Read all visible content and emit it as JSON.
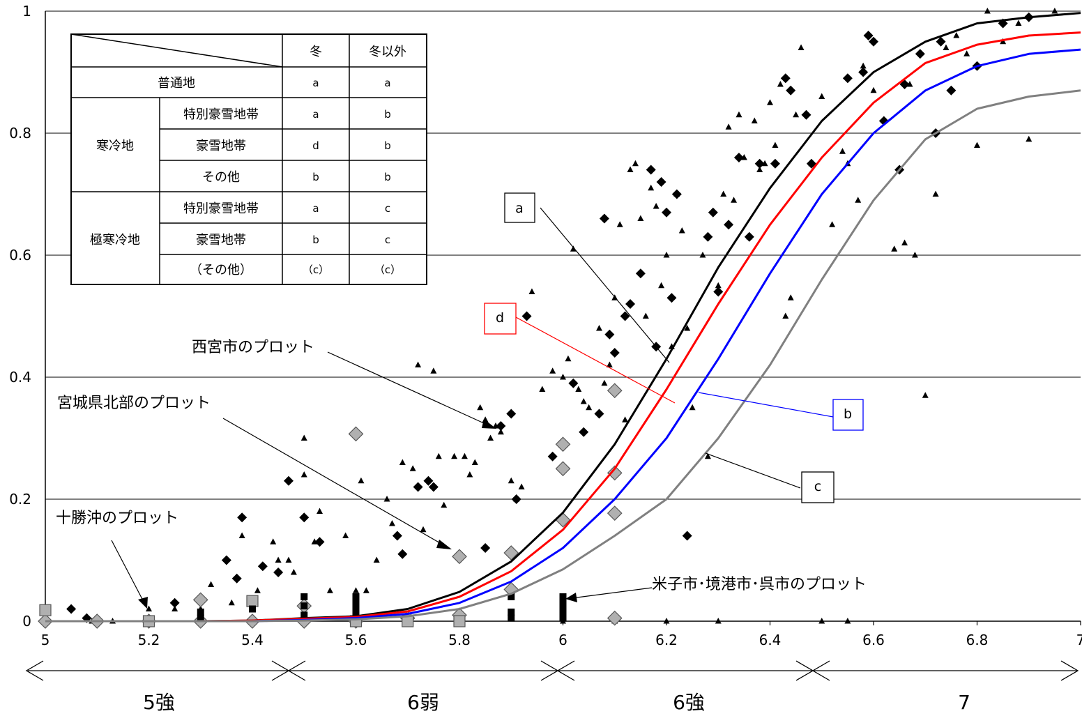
{
  "chart_data": {
    "type": "scatter",
    "title": "",
    "xlabel": "",
    "ylabel": "",
    "xlim": [
      5,
      7
    ],
    "ylim": [
      0,
      1
    ],
    "xticks": [
      5,
      5.2,
      5.4,
      5.6,
      5.8,
      6,
      6.2,
      6.4,
      6.6,
      6.8,
      7
    ],
    "xtick_labels": [
      "5",
      "5.2",
      "5.4",
      "5.6",
      "5.8",
      "6",
      "6.2",
      "6.4",
      "6.6",
      "6.8",
      "7"
    ],
    "yticks": [
      0,
      0.2,
      0.4,
      0.6,
      0.8,
      1
    ],
    "ytick_labels": [
      "0",
      "0.2",
      "0.4",
      "0.6",
      "0.8",
      "1"
    ],
    "grid": "horizontal",
    "curves": [
      {
        "label": "a",
        "color": "#000000",
        "x": [
          5,
          5.1,
          5.2,
          5.3,
          5.4,
          5.5,
          5.6,
          5.7,
          5.8,
          5.9,
          6,
          6.1,
          6.2,
          6.3,
          6.4,
          6.5,
          6.6,
          6.7,
          6.8,
          6.9,
          7
        ],
        "y": [
          0,
          0,
          0,
          0,
          0.001,
          0.005,
          0.008,
          0.02,
          0.048,
          0.098,
          0.178,
          0.29,
          0.43,
          0.58,
          0.71,
          0.82,
          0.9,
          0.95,
          0.98,
          0.99,
          0.997
        ]
      },
      {
        "label": "d",
        "color": "#ff0000",
        "x": [
          5,
          5.1,
          5.2,
          5.3,
          5.4,
          5.5,
          5.6,
          5.7,
          5.8,
          5.9,
          6,
          6.1,
          6.2,
          6.3,
          6.4,
          6.5,
          6.6,
          6.7,
          6.8,
          6.9,
          7
        ],
        "y": [
          0,
          0,
          0,
          0,
          0.001,
          0.004,
          0.007,
          0.016,
          0.04,
          0.082,
          0.15,
          0.25,
          0.38,
          0.52,
          0.65,
          0.76,
          0.85,
          0.915,
          0.945,
          0.96,
          0.965
        ]
      },
      {
        "label": "b",
        "color": "#0000ff",
        "x": [
          5,
          5.1,
          5.2,
          5.3,
          5.4,
          5.5,
          5.6,
          5.7,
          5.8,
          5.9,
          6,
          6.1,
          6.2,
          6.3,
          6.4,
          6.5,
          6.6,
          6.7,
          6.8,
          6.9,
          7
        ],
        "y": [
          0,
          0,
          0,
          0,
          0,
          0.002,
          0.005,
          0.012,
          0.03,
          0.065,
          0.12,
          0.2,
          0.3,
          0.43,
          0.57,
          0.7,
          0.8,
          0.87,
          0.91,
          0.93,
          0.937
        ]
      },
      {
        "label": "c",
        "color": "#808080",
        "x": [
          5,
          5.1,
          5.2,
          5.3,
          5.4,
          5.5,
          5.6,
          5.7,
          5.8,
          5.9,
          6,
          6.1,
          6.2,
          6.3,
          6.4,
          6.5,
          6.6,
          6.7,
          6.8,
          6.9,
          7
        ],
        "y": [
          0,
          0,
          0,
          0,
          0,
          0.001,
          0.003,
          0.008,
          0.02,
          0.045,
          0.085,
          0.14,
          0.2,
          0.3,
          0.42,
          0.56,
          0.69,
          0.79,
          0.84,
          0.86,
          0.87
        ]
      }
    ],
    "series": [
      {
        "marker": "triangle",
        "color": "#000000",
        "points": [
          [
            5.09,
            0
          ],
          [
            5.13,
            0
          ],
          [
            5.2,
            0.02
          ],
          [
            5.25,
            0.02
          ],
          [
            5.3,
            0.02
          ],
          [
            5.32,
            0.06
          ],
          [
            5.36,
            0.03
          ],
          [
            5.38,
            0.14
          ],
          [
            5.41,
            0.05
          ],
          [
            5.44,
            0.13
          ],
          [
            5.45,
            0.1
          ],
          [
            5.47,
            0.1
          ],
          [
            5.48,
            0.08
          ],
          [
            5.5,
            0.3
          ],
          [
            5.5,
            0.24
          ],
          [
            5.52,
            0.13
          ],
          [
            5.53,
            0.18
          ],
          [
            5.55,
            0.05
          ],
          [
            5.58,
            0.14
          ],
          [
            5.6,
            0.05
          ],
          [
            5.61,
            0.23
          ],
          [
            5.62,
            0.05
          ],
          [
            5.64,
            0.1
          ],
          [
            5.66,
            0.2
          ],
          [
            5.67,
            0.16
          ],
          [
            5.69,
            0.26
          ],
          [
            5.71,
            0.25
          ],
          [
            5.72,
            0.42
          ],
          [
            5.73,
            0.15
          ],
          [
            5.75,
            0.41
          ],
          [
            5.76,
            0.27
          ],
          [
            5.77,
            0.19
          ],
          [
            5.79,
            0.27
          ],
          [
            5.81,
            0.27
          ],
          [
            5.82,
            0.24
          ],
          [
            5.83,
            0.26
          ],
          [
            5.84,
            0.35
          ],
          [
            5.85,
            0.33
          ],
          [
            5.86,
            0.3
          ],
          [
            5.87,
            0.32
          ],
          [
            5.88,
            0.31
          ],
          [
            5.9,
            0.23
          ],
          [
            5.91,
            0.2
          ],
          [
            5.92,
            0.22
          ],
          [
            5.94,
            0.54
          ],
          [
            5.96,
            0.38
          ],
          [
            5.98,
            0.41
          ],
          [
            6.0,
            0.4
          ],
          [
            6.01,
            0.43
          ],
          [
            6.02,
            0.61
          ],
          [
            6.03,
            0.38
          ],
          [
            6.04,
            0.36
          ],
          [
            6.05,
            0.35
          ],
          [
            6.07,
            0.48
          ],
          [
            6.08,
            0.39
          ],
          [
            6.09,
            0.42
          ],
          [
            6.1,
            0.53
          ],
          [
            6.11,
            0.65
          ],
          [
            6.12,
            0.33
          ],
          [
            6.13,
            0.74
          ],
          [
            6.14,
            0.75
          ],
          [
            6.15,
            0.66
          ],
          [
            6.16,
            0.5
          ],
          [
            6.17,
            0.71
          ],
          [
            6.18,
            0.68
          ],
          [
            6.19,
            0.55
          ],
          [
            6.2,
            0.6
          ],
          [
            6.21,
            0.45
          ],
          [
            6.22,
            0.7
          ],
          [
            6.23,
            0.64
          ],
          [
            6.24,
            0.48
          ],
          [
            6.25,
            0.35
          ],
          [
            6.27,
            0.6
          ],
          [
            6.28,
            0.27
          ],
          [
            6.3,
            0.55
          ],
          [
            6.31,
            0.7
          ],
          [
            6.32,
            0.81
          ],
          [
            6.33,
            0.69
          ],
          [
            6.34,
            0.83
          ],
          [
            6.35,
            0.76
          ],
          [
            6.36,
            0.63
          ],
          [
            6.37,
            0.82
          ],
          [
            6.38,
            0.74
          ],
          [
            6.39,
            0.75
          ],
          [
            6.4,
            0.85
          ],
          [
            6.41,
            0.78
          ],
          [
            6.42,
            0.88
          ],
          [
            6.43,
            0.5
          ],
          [
            6.44,
            0.53
          ],
          [
            6.45,
            0.83
          ],
          [
            6.46,
            0.94
          ],
          [
            6.48,
            0.75
          ],
          [
            6.5,
            0.86
          ],
          [
            6.52,
            0.65
          ],
          [
            6.54,
            0.77
          ],
          [
            6.55,
            0.75
          ],
          [
            6.57,
            0.69
          ],
          [
            6.58,
            0.91
          ],
          [
            6.6,
            0.87
          ],
          [
            6.62,
            0.82
          ],
          [
            6.64,
            0.61
          ],
          [
            6.66,
            0.62
          ],
          [
            6.67,
            0.88
          ],
          [
            6.68,
            0.6
          ],
          [
            6.7,
            0.37
          ],
          [
            6.72,
            0.7
          ],
          [
            6.74,
            0.94
          ],
          [
            6.76,
            0.96
          ],
          [
            6.78,
            0.93
          ],
          [
            6.8,
            0.78
          ],
          [
            6.82,
            1.0
          ],
          [
            6.85,
            0.95
          ],
          [
            6.88,
            0.98
          ],
          [
            6.9,
            0.79
          ],
          [
            6.95,
            1.0
          ],
          [
            6.0,
            0
          ],
          [
            6.1,
            0
          ],
          [
            6.2,
            0
          ],
          [
            6.3,
            0
          ],
          [
            6.5,
            0
          ],
          [
            6.55,
            0
          ]
        ]
      },
      {
        "marker": "diamond-black",
        "color": "#000000",
        "points": [
          [
            5.05,
            0.02
          ],
          [
            5.08,
            0.005
          ],
          [
            5.25,
            0.03
          ],
          [
            5.35,
            0.1
          ],
          [
            5.37,
            0.07
          ],
          [
            5.38,
            0.17
          ],
          [
            5.42,
            0.09
          ],
          [
            5.45,
            0.08
          ],
          [
            5.47,
            0.23
          ],
          [
            5.5,
            0.17
          ],
          [
            5.53,
            0.13
          ],
          [
            5.68,
            0.14
          ],
          [
            5.69,
            0.11
          ],
          [
            5.72,
            0.22
          ],
          [
            5.74,
            0.23
          ],
          [
            5.75,
            0.22
          ],
          [
            5.85,
            0.12
          ],
          [
            5.88,
            0.32
          ],
          [
            5.9,
            0.34
          ],
          [
            5.91,
            0.2
          ],
          [
            5.93,
            0.5
          ],
          [
            5.98,
            0.27
          ],
          [
            6.02,
            0.39
          ],
          [
            6.04,
            0.31
          ],
          [
            6.07,
            0.34
          ],
          [
            6.08,
            0.66
          ],
          [
            6.09,
            0.47
          ],
          [
            6.1,
            0.44
          ],
          [
            6.12,
            0.5
          ],
          [
            6.13,
            0.52
          ],
          [
            6.15,
            0.57
          ],
          [
            6.17,
            0.74
          ],
          [
            6.18,
            0.45
          ],
          [
            6.19,
            0.72
          ],
          [
            6.2,
            0.67
          ],
          [
            6.21,
            0.53
          ],
          [
            6.22,
            0.7
          ],
          [
            6.24,
            0.14
          ],
          [
            6.28,
            0.63
          ],
          [
            6.29,
            0.67
          ],
          [
            6.3,
            0.54
          ],
          [
            6.32,
            0.65
          ],
          [
            6.34,
            0.76
          ],
          [
            6.36,
            0.63
          ],
          [
            6.38,
            0.75
          ],
          [
            6.41,
            0.75
          ],
          [
            6.43,
            0.89
          ],
          [
            6.44,
            0.87
          ],
          [
            6.47,
            0.83
          ],
          [
            6.48,
            0.75
          ],
          [
            6.55,
            0.89
          ],
          [
            6.58,
            0.9
          ],
          [
            6.59,
            0.96
          ],
          [
            6.6,
            0.95
          ],
          [
            6.62,
            0.82
          ],
          [
            6.65,
            0.74
          ],
          [
            6.66,
            0.88
          ],
          [
            6.69,
            0.93
          ],
          [
            6.72,
            0.8
          ],
          [
            6.73,
            0.95
          ],
          [
            6.75,
            0.87
          ],
          [
            6.8,
            0.91
          ],
          [
            6.85,
            0.98
          ],
          [
            6.9,
            0.99
          ]
        ]
      },
      {
        "marker": "diamond-gray",
        "color": "#b0b0b0",
        "points": [
          [
            5.0,
            0.0
          ],
          [
            5.1,
            0.0
          ],
          [
            5.2,
            0.0
          ],
          [
            5.3,
            0.0
          ],
          [
            5.3,
            0.035
          ],
          [
            5.4,
            0.0
          ],
          [
            5.5,
            0.0
          ],
          [
            5.5,
            0.025
          ],
          [
            5.6,
            0.0
          ],
          [
            5.6,
            0.307
          ],
          [
            5.7,
            0.005
          ],
          [
            5.8,
            0.01
          ],
          [
            5.8,
            0.106
          ],
          [
            5.9,
            0.052
          ],
          [
            5.9,
            0.112
          ],
          [
            6.0,
            0.166
          ],
          [
            6.0,
            0.25
          ],
          [
            6.0,
            0.29
          ],
          [
            6.1,
            0.005
          ],
          [
            6.1,
            0.177
          ],
          [
            6.1,
            0.243
          ],
          [
            6.1,
            0.378
          ]
        ]
      },
      {
        "marker": "square-gray",
        "color": "#b0b0b0",
        "points": [
          [
            5.0,
            0.018
          ],
          [
            5.2,
            0.0
          ],
          [
            5.4,
            0.033
          ],
          [
            5.6,
            0.0
          ],
          [
            5.7,
            0.0
          ],
          [
            5.8,
            0.0
          ]
        ]
      },
      {
        "marker": "square-black",
        "color": "#000000",
        "points": [
          [
            5.3,
            0.015
          ],
          [
            5.3,
            0.005
          ],
          [
            5.4,
            0.02
          ],
          [
            5.5,
            0.04
          ],
          [
            5.5,
            0.025
          ],
          [
            5.5,
            0.01
          ],
          [
            5.6,
            0.04
          ],
          [
            5.6,
            0.03
          ],
          [
            5.6,
            0.02
          ],
          [
            5.6,
            0.01
          ],
          [
            5.9,
            0.015
          ],
          [
            5.9,
            0.005
          ],
          [
            5.9,
            0.04
          ],
          [
            6.0,
            0.04
          ],
          [
            6.0,
            0.03
          ],
          [
            6.0,
            0.02
          ],
          [
            6.0,
            0.01
          ],
          [
            6.0,
            0.005
          ]
        ]
      }
    ],
    "box_labels": [
      "a",
      "d",
      "b",
      "c"
    ],
    "annotations": [
      "西宮市のプロット",
      "宮城県北部のプロット",
      "十勝沖のプロット",
      "米子市･境港市･呉市のプロット"
    ],
    "intensity_bands": [
      "5強",
      "6弱",
      "6強",
      "7"
    ],
    "table": {
      "header": [
        "",
        "冬",
        "冬以外"
      ],
      "rows": [
        {
          "group": "",
          "region": "普通地",
          "winter": "a",
          "other": "a"
        },
        {
          "group": "寒冷地",
          "region": "特別豪雪地帯",
          "winter": "a",
          "other": "b"
        },
        {
          "group": "寒冷地",
          "region": "豪雪地帯",
          "winter": "d",
          "other": "b"
        },
        {
          "group": "寒冷地",
          "region": "その他",
          "winter": "b",
          "other": "b"
        },
        {
          "group": "極寒冷地",
          "region": "特別豪雪地帯",
          "winter": "a",
          "other": "c"
        },
        {
          "group": "極寒冷地",
          "region": "豪雪地帯",
          "winter": "b",
          "other": "c"
        },
        {
          "group": "極寒冷地",
          "region": "（その他）",
          "winter": "（c）",
          "other": "（c）"
        }
      ]
    }
  }
}
